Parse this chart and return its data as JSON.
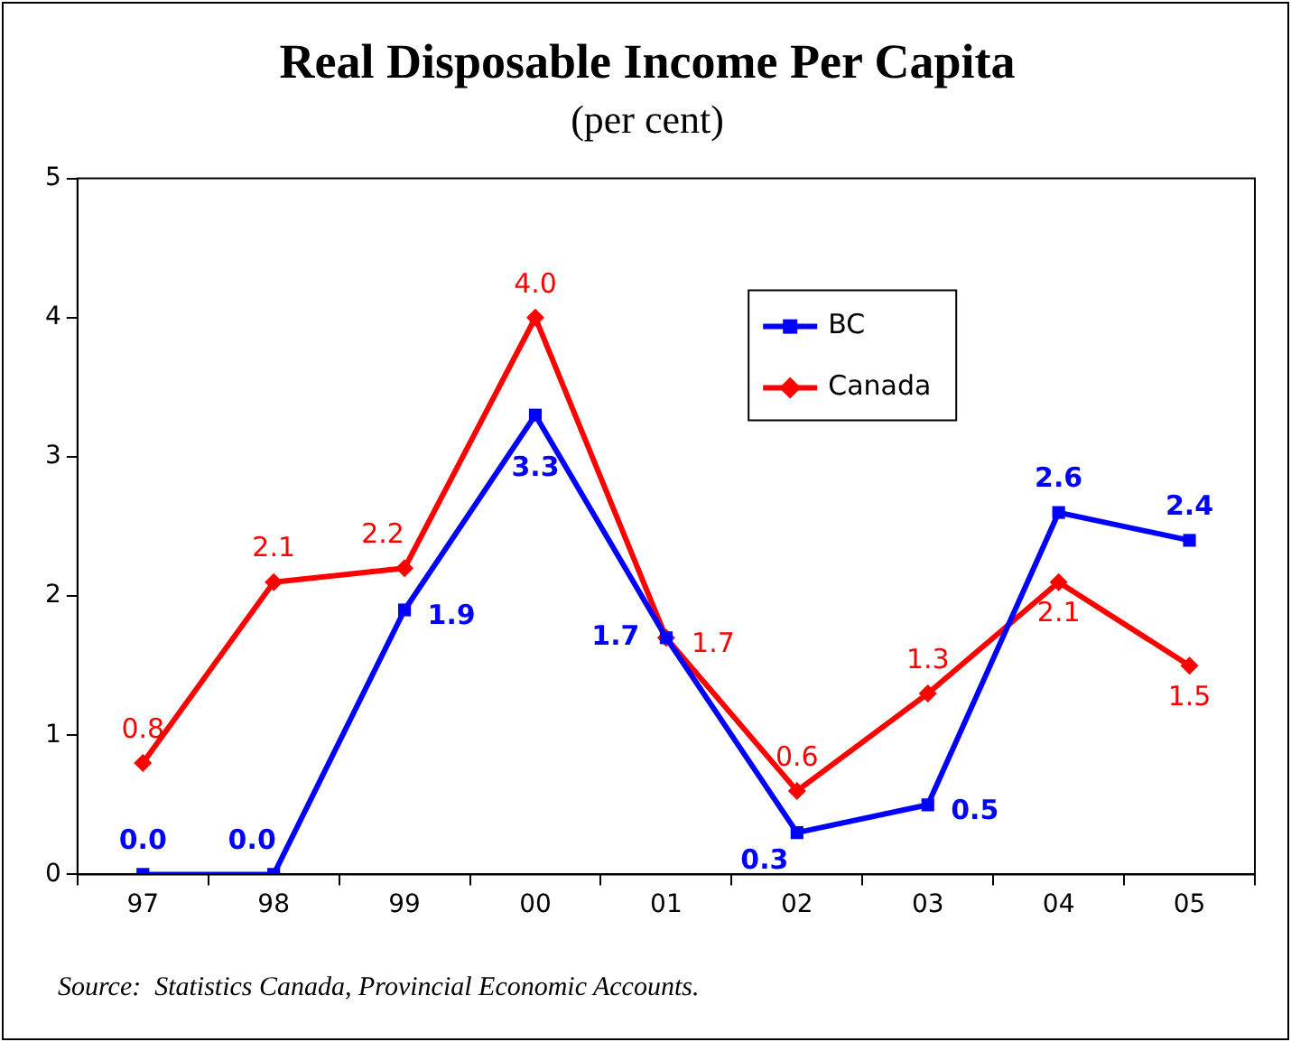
{
  "chart_data": {
    "type": "line",
    "title": "Real Disposable Income Per Capita",
    "subtitle": "(per cent)",
    "categories": [
      "97",
      "98",
      "99",
      "00",
      "01",
      "02",
      "03",
      "04",
      "05"
    ],
    "series": [
      {
        "name": "BC",
        "color": "#0000ff",
        "marker": "square",
        "values": [
          0,
          0,
          1.9,
          3.3,
          1.7,
          0.3,
          0.5,
          2.6,
          2.4
        ],
        "value_labels": [
          "0.0",
          "0.0",
          "1.9",
          "3.3",
          "1.7",
          "0.3",
          "0.5",
          "2.6",
          "2.4"
        ]
      },
      {
        "name": "Canada",
        "color": "#ff0000",
        "marker": "diamond",
        "values": [
          0.8,
          2.1,
          2.2,
          4.0,
          1.7,
          0.6,
          1.3,
          2.1,
          1.5
        ],
        "value_labels": [
          "0.8",
          "2.1",
          "2.2",
          "4.0",
          "1.7",
          "0.6",
          "1.3",
          "2.1",
          "1.5"
        ]
      }
    ],
    "ylim": [
      0,
      5
    ],
    "yticks": [
      0,
      1,
      2,
      3,
      4,
      5
    ],
    "grid": false,
    "legend": "top right",
    "annotations": [
      "Source:  Statistics Canada, Provincial Economic Accounts."
    ]
  }
}
